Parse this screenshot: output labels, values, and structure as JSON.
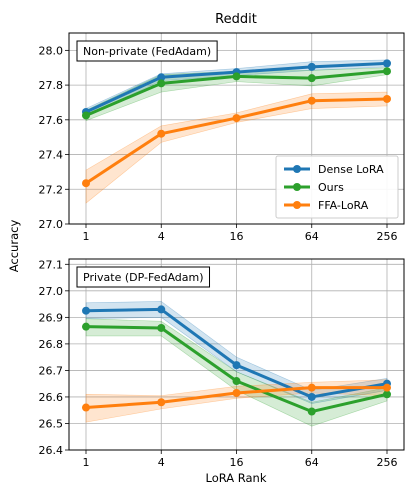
{
  "figure": {
    "title": "Reddit",
    "ylabel": "Accuracy",
    "xlabel": "LoRA Rank"
  },
  "colors": {
    "Dense LoRA": "#1f77b4",
    "Ours": "#2ca02c",
    "FFA-LoRA": "#ff7f0e",
    "grid": "#b0b0b0"
  },
  "chart_data": [
    {
      "type": "line",
      "title": "Reddit",
      "panel_label": "Non-private (FedAdam)",
      "xscale": "log2",
      "x": [
        1,
        4,
        16,
        64,
        256
      ],
      "xticklabels": [
        "1",
        "4",
        "16",
        "64",
        "256"
      ],
      "ylim": [
        27.0,
        28.1
      ],
      "yticks": [
        27.0,
        27.2,
        27.4,
        27.6,
        27.8,
        28.0
      ],
      "yticklabels": [
        "27.0",
        "27.2",
        "27.4",
        "27.6",
        "27.8",
        "28.0"
      ],
      "grid": true,
      "legend": "bottom-right",
      "series": [
        {
          "name": "Dense LoRA",
          "values": [
            27.645,
            27.845,
            27.875,
            27.905,
            27.925
          ],
          "lower": [
            27.625,
            27.825,
            27.855,
            27.885,
            27.905
          ],
          "upper": [
            27.665,
            27.865,
            27.895,
            27.935,
            27.945
          ]
        },
        {
          "name": "Ours",
          "values": [
            27.625,
            27.81,
            27.85,
            27.84,
            27.88
          ],
          "lower": [
            27.595,
            27.76,
            27.82,
            27.795,
            27.86
          ],
          "upper": [
            27.655,
            27.86,
            27.88,
            27.885,
            27.9
          ]
        },
        {
          "name": "FFA-LoRA",
          "values": [
            27.235,
            27.52,
            27.61,
            27.71,
            27.72
          ],
          "lower": [
            27.12,
            27.47,
            27.585,
            27.665,
            27.68
          ],
          "upper": [
            27.31,
            27.565,
            27.64,
            27.75,
            27.76
          ]
        }
      ]
    },
    {
      "type": "line",
      "title": "",
      "panel_label": "Private (DP-FedAdam)",
      "xlabel": "LoRA Rank",
      "xscale": "log2",
      "x": [
        1,
        4,
        16,
        64,
        256
      ],
      "xticklabels": [
        "1",
        "4",
        "16",
        "64",
        "256"
      ],
      "ylim": [
        26.4,
        27.12
      ],
      "yticks": [
        26.4,
        26.5,
        26.6,
        26.7,
        26.8,
        26.9,
        27.0,
        27.1
      ],
      "yticklabels": [
        "26.4",
        "26.5",
        "26.6",
        "26.7",
        "26.8",
        "26.9",
        "27.0",
        "27.1"
      ],
      "grid": true,
      "series": [
        {
          "name": "Dense LoRA",
          "values": [
            26.925,
            26.93,
            26.72,
            26.6,
            26.65
          ],
          "lower": [
            26.895,
            26.9,
            26.695,
            26.575,
            26.625
          ],
          "upper": [
            26.955,
            26.96,
            26.75,
            26.625,
            26.67
          ]
        },
        {
          "name": "Ours",
          "values": [
            26.865,
            26.86,
            26.66,
            26.545,
            26.61
          ],
          "lower": [
            26.83,
            26.83,
            26.625,
            26.49,
            26.585
          ],
          "upper": [
            26.895,
            26.885,
            26.695,
            26.58,
            26.635
          ]
        },
        {
          "name": "FFA-LoRA",
          "values": [
            26.56,
            26.58,
            26.615,
            26.635,
            26.635
          ],
          "lower": [
            26.505,
            26.555,
            26.595,
            26.615,
            26.605
          ],
          "upper": [
            26.61,
            26.605,
            26.64,
            26.655,
            26.665
          ]
        }
      ]
    }
  ]
}
